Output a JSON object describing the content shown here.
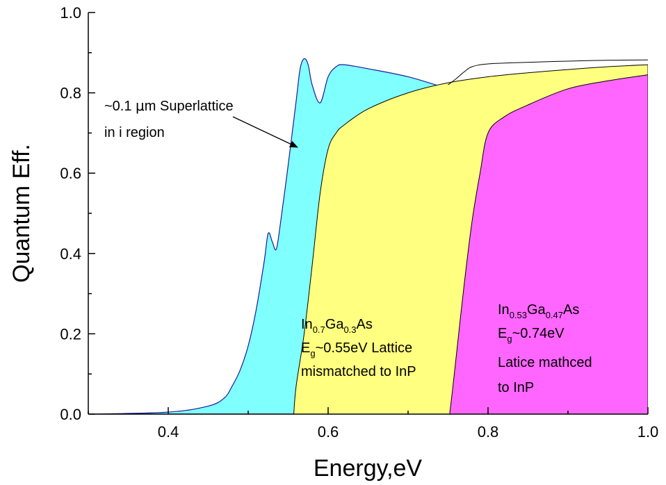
{
  "chart_data": {
    "type": "area",
    "xlabel": "Energy,eV",
    "ylabel": "Quantum Eff.",
    "xlim": [
      0.3,
      1.0
    ],
    "ylim": [
      0.0,
      1.0
    ],
    "x_ticks": [
      "0.4",
      "0.6",
      "0.8",
      "1.0"
    ],
    "x_tick_values": [
      0.4,
      0.6,
      0.8,
      1.0
    ],
    "y_ticks": [
      "0.0",
      "0.2",
      "0.4",
      "0.6",
      "0.8",
      "1.0"
    ],
    "y_tick_values": [
      0.0,
      0.2,
      0.4,
      0.6,
      0.8,
      1.0
    ],
    "grid": false,
    "colors": {
      "superlattice": "#80ffff",
      "mismatched": "#ffff80",
      "matched": "#ff66ff",
      "outline": "#000000",
      "superlattice_edge": "#1a1a99"
    },
    "series": [
      {
        "key": "superlattice",
        "x": [
          0.3,
          0.4,
          0.45,
          0.47,
          0.48,
          0.49,
          0.5,
          0.51,
          0.52,
          0.525,
          0.53,
          0.535,
          0.54,
          0.55,
          0.56,
          0.565,
          0.57,
          0.575,
          0.58,
          0.59,
          0.6,
          0.61,
          0.62,
          0.65,
          0.7,
          0.75
        ],
        "y": [
          0.0,
          0.005,
          0.02,
          0.04,
          0.07,
          0.11,
          0.17,
          0.26,
          0.38,
          0.45,
          0.43,
          0.41,
          0.47,
          0.62,
          0.78,
          0.86,
          0.885,
          0.87,
          0.82,
          0.775,
          0.84,
          0.865,
          0.87,
          0.86,
          0.84,
          0.81
        ]
      },
      {
        "key": "mismatched",
        "x": [
          0.557,
          0.56,
          0.57,
          0.58,
          0.59,
          0.6,
          0.61,
          0.62,
          0.65,
          0.7,
          0.75,
          0.8,
          0.85,
          0.9,
          0.95,
          1.0
        ],
        "y": [
          0.0,
          0.07,
          0.2,
          0.37,
          0.55,
          0.66,
          0.7,
          0.72,
          0.76,
          0.8,
          0.825,
          0.84,
          0.85,
          0.858,
          0.865,
          0.87
        ]
      },
      {
        "key": "matched",
        "x": [
          0.752,
          0.755,
          0.76,
          0.77,
          0.78,
          0.79,
          0.8,
          0.82,
          0.85,
          0.9,
          0.95,
          1.0
        ],
        "y": [
          0.0,
          0.05,
          0.14,
          0.32,
          0.48,
          0.6,
          0.7,
          0.74,
          0.77,
          0.81,
          0.83,
          0.845
        ]
      },
      {
        "key": "outline",
        "x": [
          0.75,
          0.76,
          0.77,
          0.78,
          0.8,
          0.85,
          0.9,
          0.95,
          1.0
        ],
        "y": [
          0.82,
          0.835,
          0.852,
          0.865,
          0.872,
          0.876,
          0.879,
          0.881,
          0.882
        ]
      }
    ],
    "annotations": {
      "superlattice": {
        "line1_pre": "~0.1 ",
        "line1_mu": "μ",
        "line1_post": "m Superlattice",
        "line2": "in i region"
      },
      "mismatched": {
        "in": "In",
        "in_sub": "0.7",
        "ga": "Ga",
        "ga_sub": "0.3",
        "as": "As",
        "eg": "E",
        "eg_sub": "g",
        "eg_value": "~0.55eV Lattice",
        "line3": "mismatched to InP"
      },
      "matched": {
        "in": "In",
        "in_sub": "0.53",
        "ga": "Ga",
        "ga_sub": "0.47",
        "as": "As",
        "eg": "E",
        "eg_sub": "g",
        "eg_value": "~0.74eV",
        "line3": "Latice mathced",
        "line4": "to InP"
      }
    }
  }
}
